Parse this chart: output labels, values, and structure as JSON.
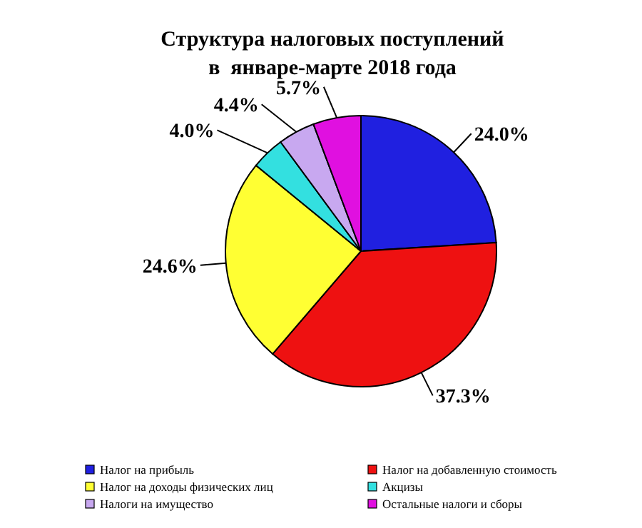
{
  "chart_data": {
    "type": "pie",
    "title": "Структура налоговых поступлений\nв  январе-марте 2018 года",
    "categories": [
      "Налог на прибыль",
      "Налог на добавленную стоимость",
      "Налог на доходы физических лиц",
      "Акцизы",
      "Налоги на имущество",
      "Остальные налоги и сборы"
    ],
    "values": [
      24.0,
      37.3,
      24.6,
      4.0,
      4.4,
      5.7
    ],
    "value_labels": [
      "24.0%",
      "37.3%",
      "24.6%",
      "4.0%",
      "4.4%",
      "5.7%"
    ],
    "colors": [
      "#2020e0",
      "#ee1111",
      "#ffff33",
      "#33e0e0",
      "#c8a8f0",
      "#e010e0"
    ],
    "legend": "bottom"
  }
}
